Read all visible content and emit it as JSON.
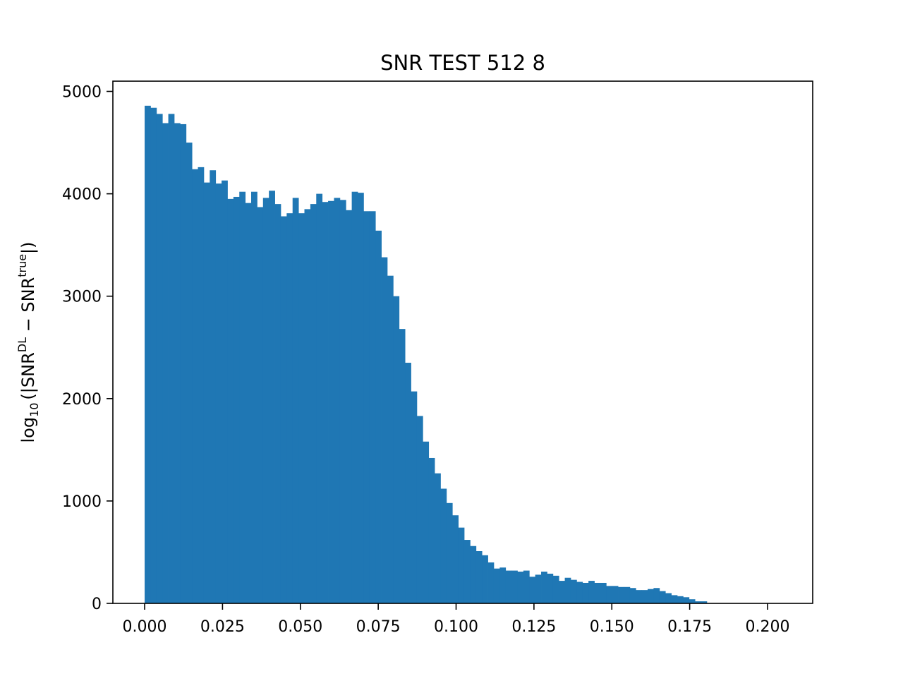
{
  "chart_data": {
    "type": "bar",
    "title": "SNR TEST 512 8",
    "xlabel": "",
    "ylabel": {
      "prefix": "log",
      "sub": "10",
      "mid1": "(|SNR",
      "sup1": "DL",
      "mid2": " − SNR",
      "sup2": "true",
      "suffix": "|)"
    },
    "xlim": [
      -0.0102,
      0.2145
    ],
    "ylim": [
      0,
      5100
    ],
    "xticks": [
      0.0,
      0.025,
      0.05,
      0.075,
      0.1,
      0.125,
      0.15,
      0.175,
      0.2
    ],
    "xtick_labels": [
      "0.000",
      "0.025",
      "0.050",
      "0.075",
      "0.100",
      "0.125",
      "0.150",
      "0.175",
      "0.200"
    ],
    "yticks": [
      0,
      1000,
      2000,
      3000,
      4000,
      5000
    ],
    "ytick_labels": [
      "0",
      "1000",
      "2000",
      "3000",
      "4000",
      "5000"
    ],
    "bin_start": 0.0,
    "bin_width": 0.0019,
    "bar_color": "#1f77b4",
    "values": [
      4860,
      4840,
      4780,
      4690,
      4780,
      4690,
      4680,
      4500,
      4240,
      4260,
      4110,
      4230,
      4100,
      4130,
      3950,
      3970,
      4020,
      3910,
      4020,
      3870,
      3960,
      4030,
      3900,
      3780,
      3810,
      3960,
      3810,
      3850,
      3900,
      4000,
      3920,
      3930,
      3960,
      3940,
      3840,
      4020,
      4010,
      3830,
      3830,
      3640,
      3380,
      3200,
      3000,
      2680,
      2350,
      2070,
      1830,
      1580,
      1420,
      1270,
      1120,
      980,
      860,
      740,
      620,
      560,
      510,
      470,
      400,
      340,
      350,
      320,
      320,
      310,
      320,
      260,
      280,
      310,
      290,
      270,
      220,
      250,
      230,
      210,
      200,
      220,
      200,
      200,
      170,
      170,
      160,
      160,
      150,
      130,
      130,
      140,
      150,
      120,
      100,
      80,
      70,
      60,
      40,
      20,
      20
    ]
  }
}
